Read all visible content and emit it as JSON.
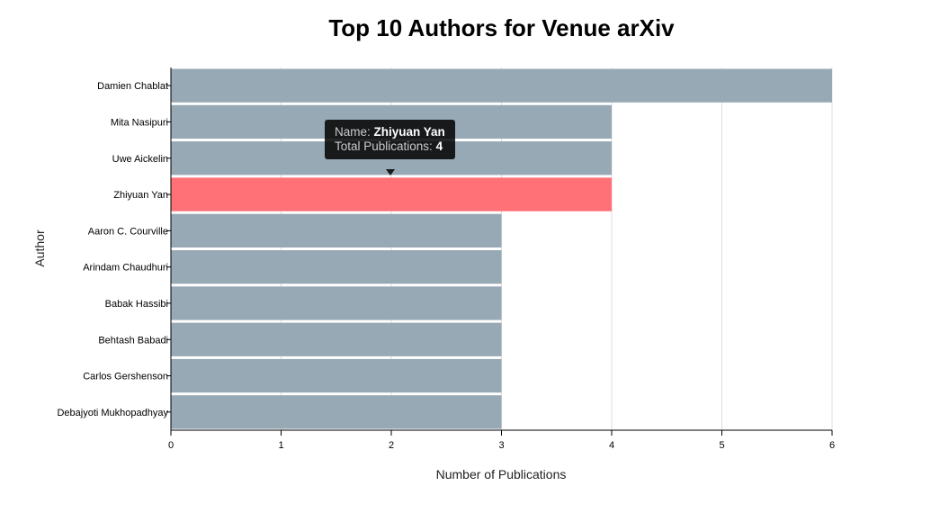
{
  "chart_data": {
    "type": "bar",
    "orientation": "horizontal",
    "title": "Top 10 Authors for Venue arXiv",
    "xlabel": "Number of Publications",
    "ylabel": "Author",
    "categories": [
      "Damien Chablat",
      "Mita Nasipuri",
      "Uwe Aickelin",
      "Zhiyuan Yan",
      "Aaron C. Courville",
      "Arindam Chaudhuri",
      "Babak Hassibi",
      "Behtash Babadi",
      "Carlos Gershenson",
      "Debajyoti Mukhopadhyay"
    ],
    "values": [
      6,
      4,
      4,
      4,
      3,
      3,
      3,
      3,
      3,
      3
    ],
    "xlim": [
      0,
      6
    ],
    "xticks": [
      "0",
      "1",
      "2",
      "3",
      "4",
      "5",
      "6"
    ],
    "grid": true,
    "highlighted_category": "Zhiyuan Yan",
    "colors": {
      "bar": "#97a9b5",
      "highlight": "#ff7077",
      "grid": "#dddddd",
      "axis": "#000000"
    }
  },
  "tooltip": {
    "name_label": "Name:",
    "name_value": "Zhiyuan Yan",
    "total_label": "Total Publications:",
    "total_value": "4"
  }
}
